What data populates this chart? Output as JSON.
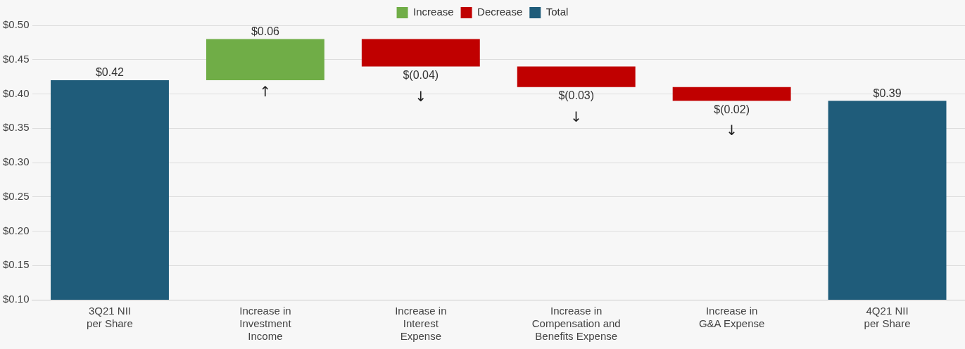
{
  "chart_data": {
    "type": "bar",
    "categories": [
      "3Q21 NII per Share",
      "Increase in Investment Income",
      "Increase in Interest Expense",
      "Increase in Compensation and Benefits Expense",
      "Increase in G&A Expense",
      "4Q21 NII per Share"
    ],
    "series": [
      {
        "name": "Increase",
        "color": "#70ad47",
        "values": [
          null,
          0.06,
          null,
          null,
          null,
          null
        ],
        "base": [
          null,
          0.42,
          null,
          null,
          null,
          null
        ]
      },
      {
        "name": "Decrease",
        "color": "#c00000",
        "values": [
          null,
          null,
          -0.04,
          -0.03,
          -0.02,
          null
        ],
        "base": [
          null,
          null,
          0.48,
          0.44,
          0.41,
          null
        ]
      },
      {
        "name": "Total",
        "color": "#1f5c7a",
        "values": [
          0.42,
          null,
          null,
          null,
          null,
          0.39
        ]
      }
    ],
    "annotations": [
      "↑",
      "↓",
      "↓",
      "↓"
    ],
    "value_labels": [
      "$0.42",
      "$0.06",
      "$(0.04)",
      "$(0.03)",
      "$(0.02)",
      "$0.39"
    ],
    "ylim": [
      0.1,
      0.5
    ],
    "yticks": [
      {
        "value": 0.1,
        "label": "$0.10"
      },
      {
        "value": 0.15,
        "label": "$0.15"
      },
      {
        "value": 0.2,
        "label": "$0.20"
      },
      {
        "value": 0.25,
        "label": "$0.25"
      },
      {
        "value": 0.3,
        "label": "$0.30"
      },
      {
        "value": 0.35,
        "label": "$0.35"
      },
      {
        "value": 0.4,
        "label": "$0.40"
      },
      {
        "value": 0.45,
        "label": "$0.45"
      },
      {
        "value": 0.5,
        "label": "$0.50"
      }
    ],
    "grid": "y",
    "legend": "top"
  }
}
